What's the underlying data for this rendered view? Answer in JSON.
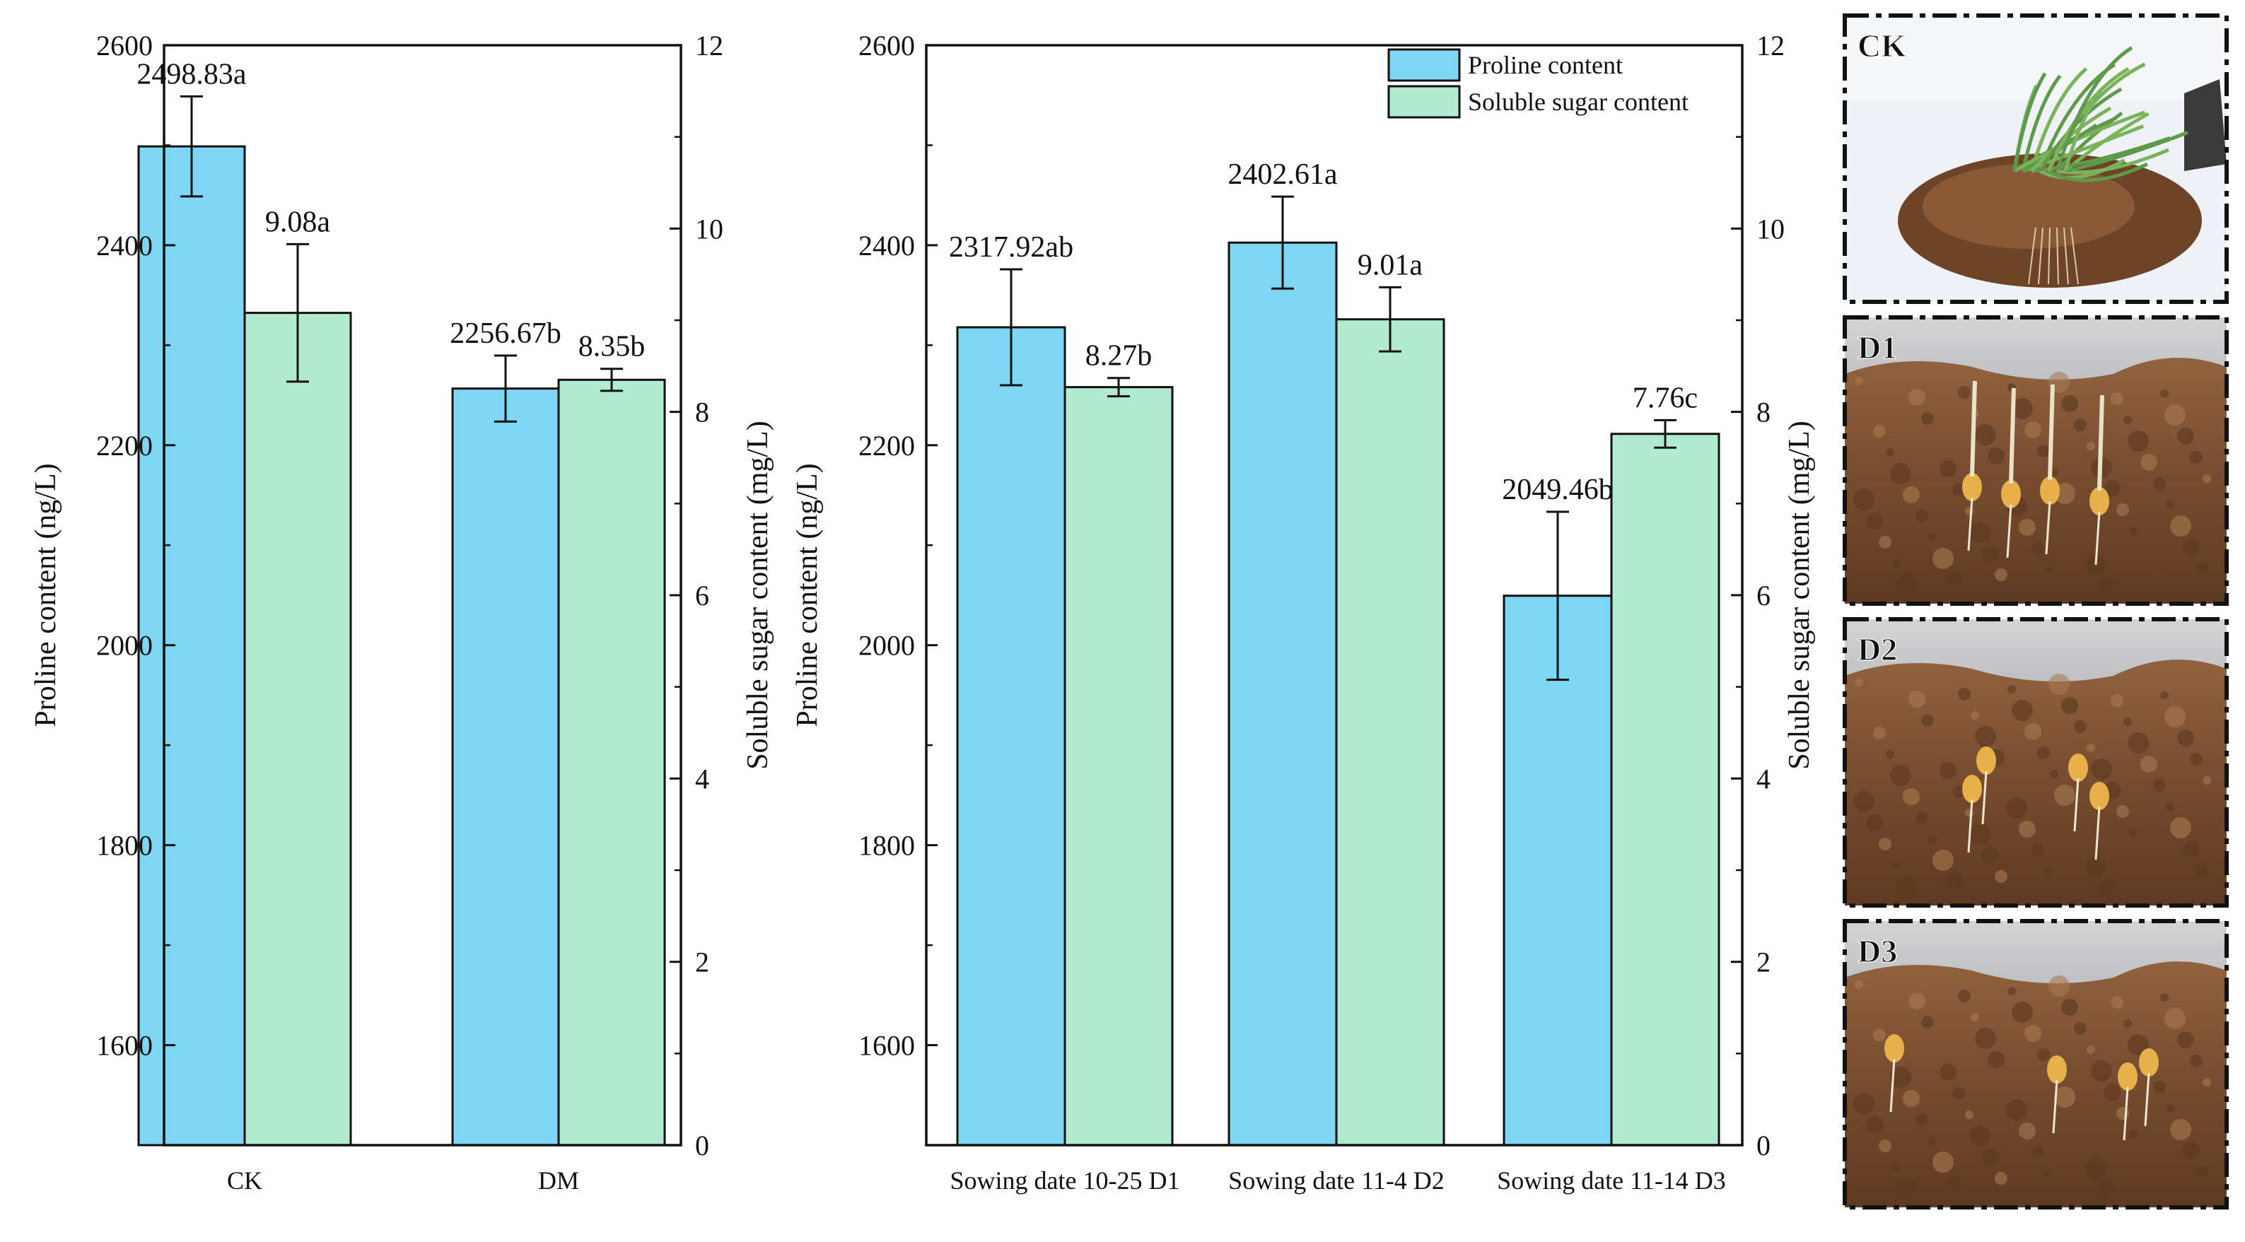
{
  "chart_data": [
    {
      "type": "bar",
      "categories": [
        "CK",
        "DM"
      ],
      "series": [
        {
          "name": "Proline content",
          "axis": "left",
          "values": [
            2498.83,
            2256.67
          ],
          "errors": [
            50,
            33
          ],
          "labels": [
            "2498.83a",
            "2256.67b"
          ]
        },
        {
          "name": "Soluble sugar content",
          "axis": "right",
          "values": [
            9.08,
            8.35
          ],
          "errors": [
            0.75,
            0.12
          ],
          "labels": [
            "9.08a",
            "8.35b"
          ]
        }
      ],
      "ylabel": "Proline content (ng/L)",
      "y2label": "Soluble sugar content (mg/L)",
      "ylim": [
        1500,
        2600
      ],
      "yticks": [
        1600,
        1800,
        2000,
        2200,
        2400,
        2600
      ],
      "y2lim": [
        0,
        12
      ],
      "y2ticks": [
        0,
        2,
        4,
        6,
        8,
        10,
        12
      ],
      "legend": "none",
      "grid": false
    },
    {
      "type": "bar",
      "categories": [
        "Sowing date 10-25 D1",
        "Sowing date 11-4 D2",
        "Sowing date 11-14 D3"
      ],
      "series": [
        {
          "name": "Proline content",
          "axis": "left",
          "values": [
            2317.92,
            2402.61,
            2049.46
          ],
          "errors": [
            58,
            46,
            84
          ],
          "labels": [
            "2317.92ab",
            "2402.61a",
            "2049.46b"
          ]
        },
        {
          "name": "Soluble sugar content",
          "axis": "right",
          "values": [
            8.27,
            9.01,
            7.76
          ],
          "errors": [
            0.1,
            0.35,
            0.15
          ],
          "labels": [
            "8.27b",
            "9.01a",
            "7.76c"
          ]
        }
      ],
      "ylabel": "Proline content (ng/L)",
      "y2label": "Soluble sugar content (mg/L)",
      "ylim": [
        1500,
        2600
      ],
      "yticks": [
        1600,
        1800,
        2000,
        2200,
        2400,
        2600
      ],
      "y2lim": [
        0,
        12
      ],
      "y2ticks": [
        0,
        2,
        4,
        6,
        8,
        10,
        12
      ],
      "legend": "top-right",
      "grid": false
    }
  ],
  "legend_entries": [
    "Proline content",
    "Soluble sugar content"
  ],
  "colors": {
    "proline": "#7fd6f2",
    "sugar": "#b2ebcf",
    "axis": "#111111"
  },
  "photos": [
    {
      "label": "CK",
      "scene": "wheat-seedling"
    },
    {
      "label": "D1",
      "scene": "soil-roots"
    },
    {
      "label": "D2",
      "scene": "soil-seeds"
    },
    {
      "label": "D3",
      "scene": "soil-seeds-sparse"
    }
  ]
}
